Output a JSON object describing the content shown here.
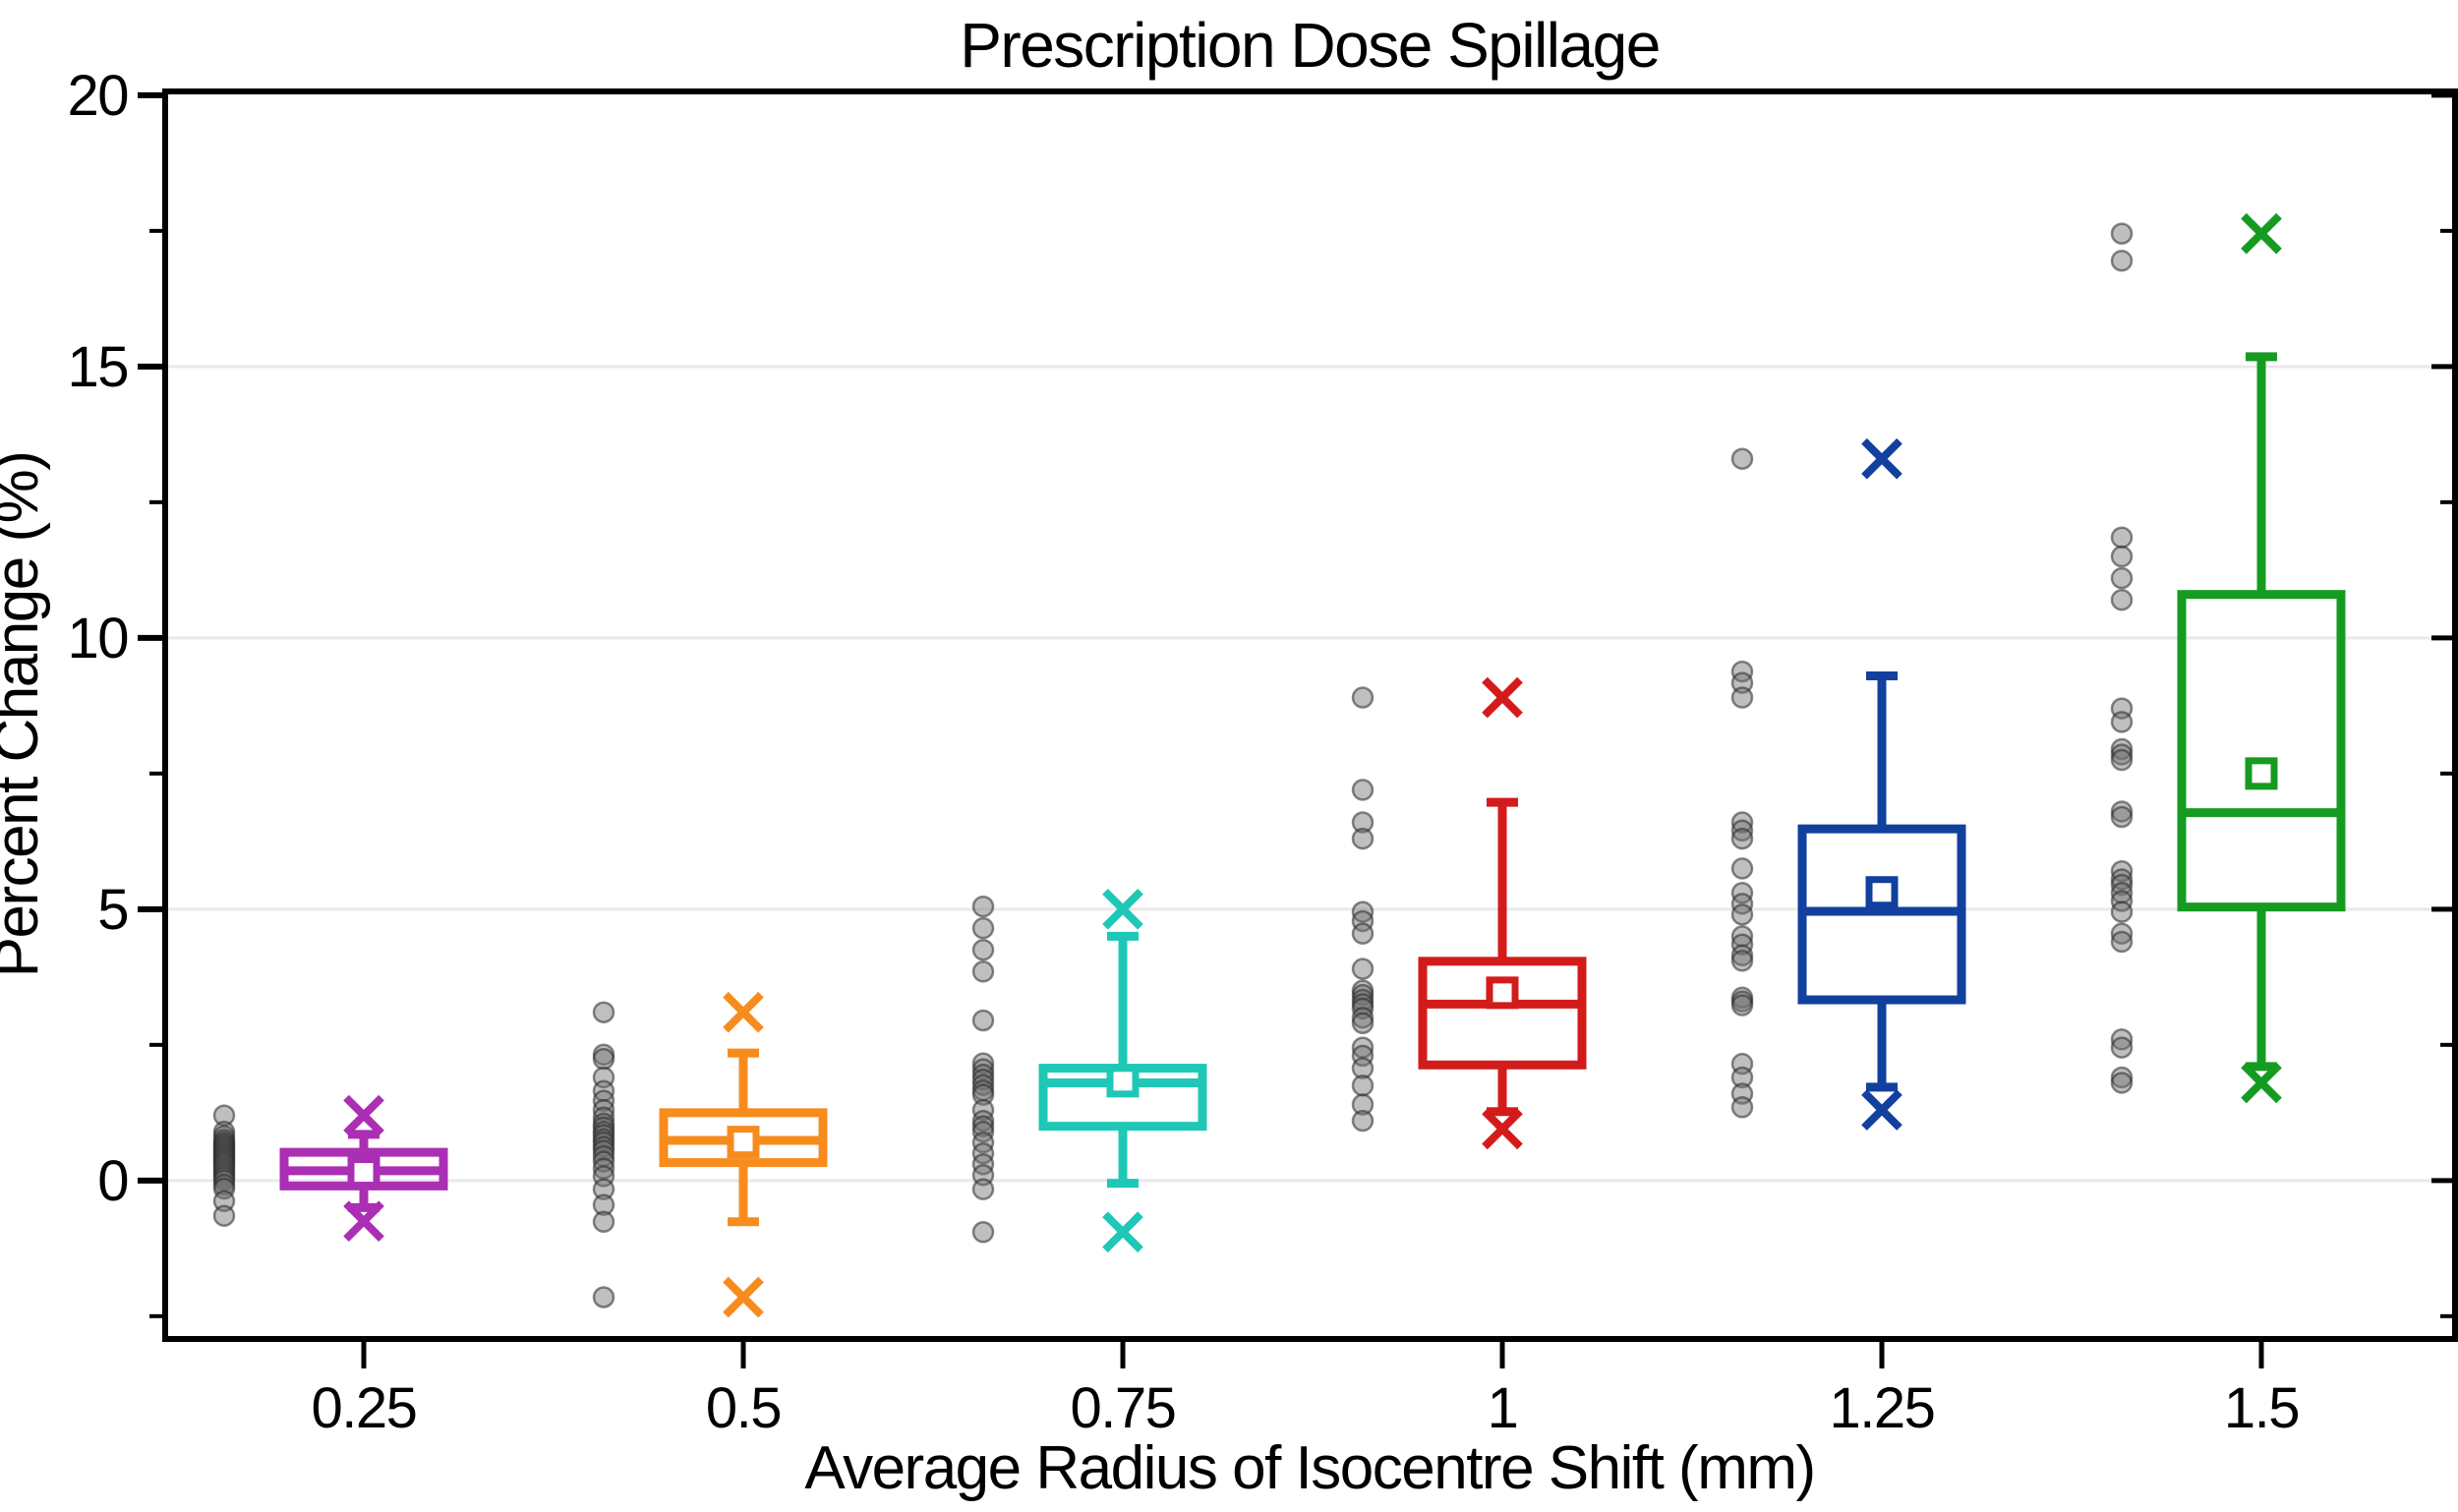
{
  "chart_data": {
    "type": "boxplot",
    "title": "Prescription Dose Spillage",
    "xlabel": "Average Radius of Isocentre Shift (mm)",
    "ylabel": "Percent Change (%)",
    "x_tick_labels": [
      "0.25",
      "0.5",
      "0.75",
      "1",
      "1.25",
      "1.5"
    ],
    "y_axis": {
      "min": -2.9,
      "max": 20.1,
      "major_ticks": [
        0,
        5,
        10,
        15,
        20
      ],
      "minor_ticks": [
        -2.5,
        2.5,
        7.5,
        12.5,
        17.5
      ],
      "gridline_values": [
        0,
        5,
        10,
        15
      ],
      "grid": "horizontal-major-only"
    },
    "legend": "none",
    "marker_semantics": {
      "open_square": "mean",
      "x_marker": "extreme value (min/max)",
      "gray_circles": "individual data points plotted left of each box"
    },
    "groups": [
      {
        "category": "0.25",
        "color": "#AA2FB3",
        "box": {
          "min_x_marker": -0.75,
          "lower_whisker": -0.5,
          "q1": -0.1,
          "median": 0.18,
          "mean": 0.15,
          "q3": 0.52,
          "upper_whisker": 0.85,
          "max_x_marker": 1.2
        },
        "scatter": [
          1.2,
          0.9,
          0.82,
          0.75,
          0.7,
          0.66,
          0.62,
          0.58,
          0.54,
          0.5,
          0.46,
          0.42,
          0.38,
          0.34,
          0.3,
          0.25,
          0.2,
          0.15,
          0.1,
          0.05,
          0.0,
          -0.08,
          -0.15,
          -0.38,
          -0.65
        ]
      },
      {
        "category": "0.5",
        "color": "#F78C1E",
        "box": {
          "min_x_marker": -2.15,
          "lower_whisker": -0.76,
          "q1": 0.33,
          "median": 0.74,
          "mean": 0.71,
          "q3": 1.25,
          "upper_whisker": 2.35,
          "max_x_marker": 3.1
        },
        "scatter": [
          3.1,
          2.32,
          2.24,
          1.9,
          1.65,
          1.47,
          1.3,
          1.16,
          1.05,
          0.98,
          0.9,
          0.84,
          0.76,
          0.7,
          0.62,
          0.55,
          0.45,
          0.35,
          0.22,
          0.08,
          -0.16,
          -0.45,
          -0.76,
          -2.15
        ]
      },
      {
        "category": "0.75",
        "color": "#1FC7B6",
        "box": {
          "min_x_marker": -0.95,
          "lower_whisker": -0.05,
          "q1": 1.0,
          "median": 1.8,
          "mean": 1.83,
          "q3": 2.07,
          "upper_whisker": 4.5,
          "max_x_marker": 5.0
        },
        "scatter": [
          5.05,
          4.65,
          4.25,
          3.85,
          2.95,
          2.16,
          2.05,
          1.95,
          1.86,
          1.76,
          1.66,
          1.58,
          1.3,
          1.1,
          1.0,
          0.9,
          0.7,
          0.5,
          0.3,
          0.1,
          -0.16,
          -0.95
        ]
      },
      {
        "category": "1",
        "color": "#D41B1B",
        "box": {
          "min_x_marker": 0.95,
          "lower_whisker": 1.27,
          "q1": 2.13,
          "median": 3.25,
          "mean": 3.46,
          "q3": 4.04,
          "upper_whisker": 6.97,
          "max_x_marker": 8.9
        },
        "scatter": [
          8.9,
          7.2,
          6.6,
          6.3,
          4.95,
          4.78,
          4.55,
          3.9,
          3.5,
          3.42,
          3.33,
          3.25,
          3.17,
          3.0,
          2.9,
          2.45,
          2.3,
          2.07,
          1.75,
          1.4,
          1.1
        ]
      },
      {
        "category": "1.25",
        "color": "#11409E",
        "box": {
          "min_x_marker": 1.3,
          "lower_whisker": 1.72,
          "q1": 3.33,
          "median": 4.96,
          "mean": 5.31,
          "q3": 6.48,
          "upper_whisker": 9.3,
          "max_x_marker": 13.3
        },
        "scatter": [
          13.3,
          9.38,
          9.17,
          8.9,
          6.6,
          6.45,
          6.3,
          5.75,
          5.3,
          5.1,
          4.9,
          4.5,
          4.35,
          4.15,
          4.05,
          3.37,
          3.3,
          3.23,
          2.15,
          1.9,
          1.6,
          1.35
        ]
      },
      {
        "category": "1.5",
        "color": "#169B21",
        "box": {
          "min_x_marker": 1.8,
          "lower_whisker": 2.1,
          "q1": 5.04,
          "median": 6.78,
          "mean": 7.5,
          "q3": 10.8,
          "upper_whisker": 15.18,
          "max_x_marker": 17.45
        },
        "scatter": [
          17.45,
          16.95,
          11.85,
          11.5,
          11.1,
          10.7,
          8.7,
          8.45,
          7.95,
          7.85,
          7.75,
          6.8,
          6.7,
          5.7,
          5.55,
          5.45,
          5.3,
          5.15,
          4.95,
          4.55,
          4.4,
          2.6,
          2.45,
          1.9,
          1.8
        ]
      }
    ]
  },
  "colors": {
    "background": "#ffffff",
    "axis": "#000000",
    "grid": "#e9e9e9",
    "scatter_fill": "#707070",
    "scatter_stroke": "#282828"
  }
}
